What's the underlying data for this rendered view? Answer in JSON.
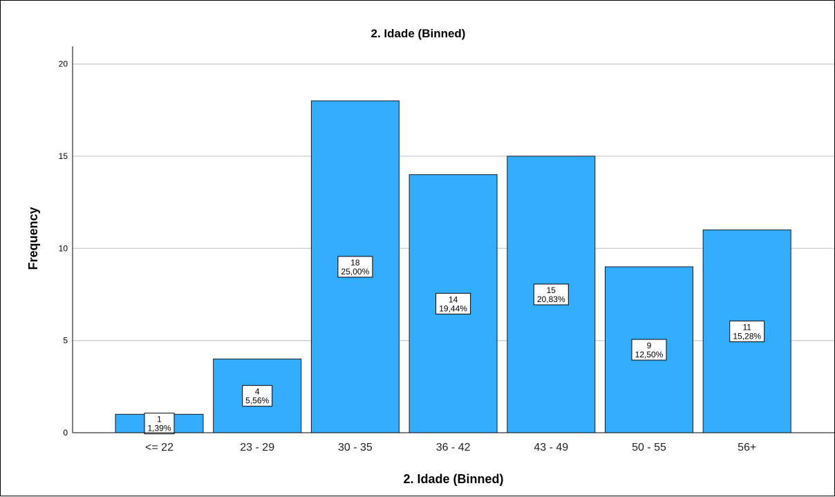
{
  "chart_data": {
    "type": "bar",
    "title": "2. Idade (Binned)",
    "xlabel": "2. Idade (Binned)",
    "ylabel": "Frequency",
    "ylim": [
      0,
      21
    ],
    "yticks": [
      0,
      5,
      10,
      15,
      20
    ],
    "grid": true,
    "categories": [
      "<= 22",
      "23 - 29",
      "30 - 35",
      "36 - 42",
      "43 - 49",
      "50 - 55",
      "56+"
    ],
    "values": [
      1,
      4,
      18,
      14,
      15,
      9,
      11
    ],
    "percent_labels": [
      "1,39%",
      "5,56%",
      "25,00%",
      "19,44%",
      "20,83%",
      "12,50%",
      "15,28%"
    ],
    "colors": {
      "bar": "#33adff",
      "bar_stroke": "#1a1a1a",
      "grid": "#c8c8c8"
    }
  }
}
